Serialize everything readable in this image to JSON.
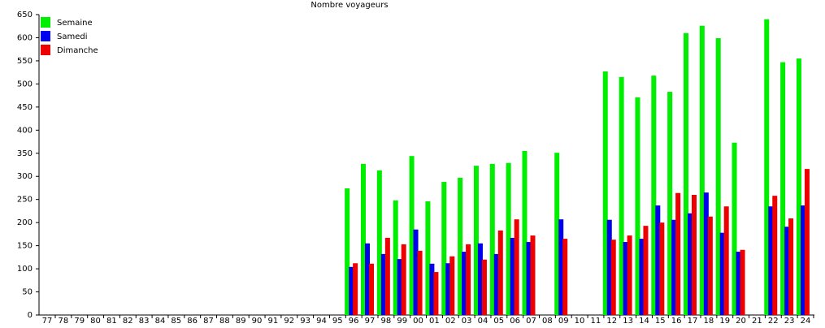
{
  "chart_data": {
    "type": "bar",
    "title": "Nombre voyageurs",
    "categories": [
      "77",
      "78",
      "79",
      "80",
      "81",
      "82",
      "83",
      "84",
      "85",
      "86",
      "87",
      "88",
      "89",
      "90",
      "91",
      "92",
      "93",
      "94",
      "95",
      "96",
      "97",
      "98",
      "99",
      "00",
      "01",
      "02",
      "03",
      "04",
      "05",
      "06",
      "07",
      "08",
      "09",
      "10",
      "11",
      "12",
      "13",
      "14",
      "15",
      "16",
      "17",
      "18",
      "19",
      "20",
      "21",
      "22",
      "23",
      "24"
    ],
    "series": [
      {
        "name": "Semaine",
        "color": "#00ee00",
        "values": [
          null,
          null,
          null,
          null,
          null,
          null,
          null,
          null,
          null,
          null,
          null,
          null,
          null,
          null,
          null,
          null,
          null,
          null,
          null,
          274,
          327,
          313,
          248,
          344,
          246,
          288,
          297,
          323,
          327,
          329,
          355,
          null,
          351,
          null,
          null,
          527,
          515,
          471,
          518,
          483,
          610,
          626,
          599,
          373,
          null,
          640,
          547,
          555
        ]
      },
      {
        "name": "Samedi",
        "color": "#0000ee",
        "values": [
          null,
          null,
          null,
          null,
          null,
          null,
          null,
          null,
          null,
          null,
          null,
          null,
          null,
          null,
          null,
          null,
          null,
          null,
          null,
          104,
          155,
          132,
          121,
          185,
          111,
          112,
          137,
          155,
          132,
          167,
          158,
          null,
          207,
          null,
          null,
          206,
          158,
          165,
          237,
          206,
          220,
          265,
          178,
          137,
          null,
          235,
          191,
          237
        ]
      },
      {
        "name": "Dimanche",
        "color": "#ee0000",
        "values": [
          null,
          null,
          null,
          null,
          null,
          null,
          null,
          null,
          null,
          null,
          null,
          null,
          null,
          null,
          null,
          null,
          null,
          null,
          null,
          112,
          111,
          167,
          153,
          139,
          93,
          127,
          153,
          120,
          183,
          207,
          172,
          null,
          165,
          null,
          null,
          163,
          172,
          193,
          200,
          264,
          260,
          213,
          235,
          141,
          null,
          258,
          209,
          316
        ]
      }
    ],
    "ylim": [
      0,
      650
    ],
    "yticks": [
      0,
      50,
      100,
      150,
      200,
      250,
      300,
      350,
      400,
      450,
      500,
      550,
      600,
      650
    ],
    "legend": "top-left"
  }
}
